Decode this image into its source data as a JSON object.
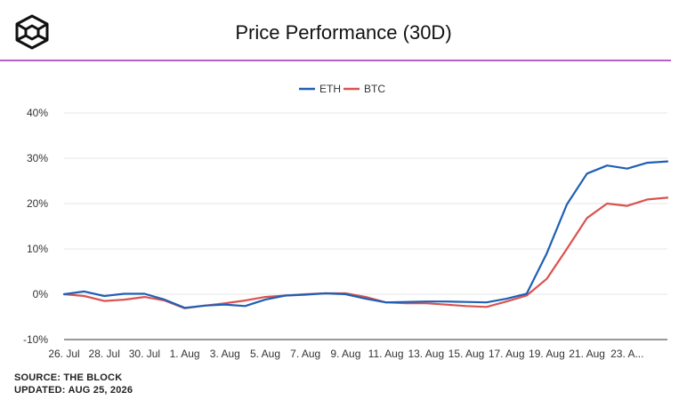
{
  "header": {
    "title": "Price Performance (30D)"
  },
  "footer": {
    "source": "SOURCE: THE BLOCK",
    "updated": "UPDATED: AUG 25, 2026"
  },
  "colors": {
    "eth": "#1f5fb5",
    "btc": "#d9534f",
    "divider": "#b55fc9"
  },
  "chart_data": {
    "type": "line",
    "title": "Price Performance (30D)",
    "legend_position": "top-center",
    "grid": true,
    "y_unit": "%",
    "ylim": [
      -10,
      40
    ],
    "y_ticks": [
      -10,
      0,
      10,
      20,
      30,
      40
    ],
    "y_tick_labels": [
      "-10%",
      "0%",
      "10%",
      "20%",
      "30%",
      "40%"
    ],
    "x_tick_labels": [
      "26. Jul",
      "28. Jul",
      "30. Jul",
      "1. Aug",
      "3. Aug",
      "5. Aug",
      "7. Aug",
      "9. Aug",
      "11. Aug",
      "13. Aug",
      "15. Aug",
      "17. Aug",
      "19. Aug",
      "21. Aug",
      "23. A..."
    ],
    "x": [
      "Jul 26",
      "Jul 27",
      "Jul 28",
      "Jul 29",
      "Jul 30",
      "Jul 31",
      "Aug 1",
      "Aug 2",
      "Aug 3",
      "Aug 4",
      "Aug 5",
      "Aug 6",
      "Aug 7",
      "Aug 8",
      "Aug 9",
      "Aug 10",
      "Aug 11",
      "Aug 12",
      "Aug 13",
      "Aug 14",
      "Aug 15",
      "Aug 16",
      "Aug 17",
      "Aug 18",
      "Aug 19",
      "Aug 20",
      "Aug 21",
      "Aug 22",
      "Aug 23",
      "Aug 24",
      "Aug 25"
    ],
    "series": [
      {
        "name": "ETH",
        "values": [
          0.0,
          0.6,
          -0.4,
          0.1,
          0.1,
          -1.2,
          -3.0,
          -2.5,
          -2.3,
          -2.6,
          -1.2,
          -0.3,
          -0.1,
          0.2,
          0.0,
          -1.0,
          -1.8,
          -1.7,
          -1.6,
          -1.6,
          -1.7,
          -1.8,
          -1.0,
          0.1,
          9.0,
          19.8,
          26.6,
          28.4,
          27.7,
          29.0,
          29.3
        ]
      },
      {
        "name": "BTC",
        "values": [
          0.0,
          -0.4,
          -1.5,
          -1.2,
          -0.6,
          -1.4,
          -3.1,
          -2.5,
          -2.0,
          -1.4,
          -0.6,
          -0.3,
          0.0,
          0.2,
          0.2,
          -0.6,
          -1.8,
          -2.0,
          -2.0,
          -2.3,
          -2.6,
          -2.8,
          -1.6,
          -0.3,
          3.4,
          10.0,
          16.8,
          20.0,
          19.5,
          20.9,
          21.3
        ]
      }
    ]
  }
}
